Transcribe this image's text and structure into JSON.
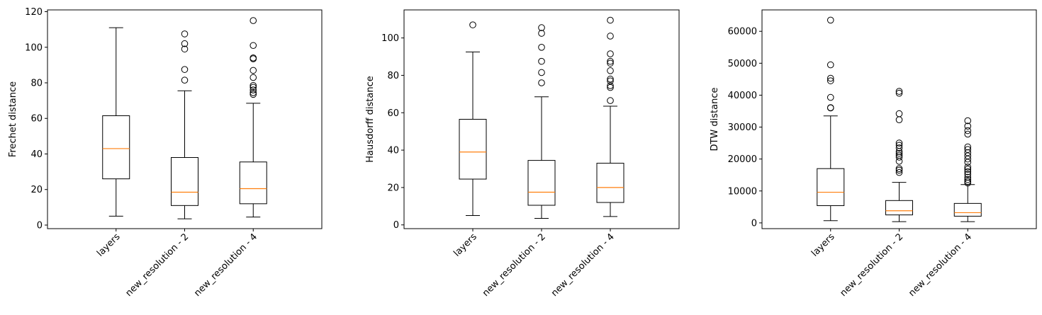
{
  "chart_data": [
    {
      "type": "box",
      "ylabel": "Frechet distance",
      "ylim": [
        -2,
        121
      ],
      "yticks": [
        0,
        20,
        40,
        60,
        80,
        100,
        120
      ],
      "categories": [
        "layers",
        "new_resolution - 2",
        "new_resolution - 4"
      ],
      "boxes": [
        {
          "whislo": 5,
          "q1": 26,
          "med": 43,
          "q3": 61.5,
          "whishi": 111,
          "fliers": []
        },
        {
          "whislo": 3.5,
          "q1": 11,
          "med": 18.5,
          "q3": 38,
          "whishi": 75.5,
          "fliers": [
            81.5,
            87.5,
            99,
            102,
            107.5
          ]
        },
        {
          "whislo": 4.5,
          "q1": 12,
          "med": 20.5,
          "q3": 35.5,
          "whishi": 68.5,
          "fliers": [
            73.5,
            74.5,
            76,
            77.5,
            78.5,
            83,
            87,
            93.5,
            94,
            101,
            115
          ]
        }
      ]
    },
    {
      "type": "box",
      "ylabel": "Hausdorff distance",
      "ylim": [
        -2,
        115
      ],
      "yticks": [
        0,
        20,
        40,
        60,
        80,
        100
      ],
      "categories": [
        "layers",
        "new_resolution - 2",
        "new_resolution - 4"
      ],
      "boxes": [
        {
          "whislo": 5,
          "q1": 24.5,
          "med": 39,
          "q3": 56.5,
          "whishi": 92.5,
          "fliers": [
            107
          ]
        },
        {
          "whislo": 3.5,
          "q1": 10.5,
          "med": 17.5,
          "q3": 34.5,
          "whishi": 68.5,
          "fliers": [
            76,
            81.5,
            87.5,
            95,
            102.5,
            105.5
          ]
        },
        {
          "whislo": 4.5,
          "q1": 12,
          "med": 20,
          "q3": 33,
          "whishi": 63.5,
          "fliers": [
            66.5,
            73.5,
            74.5,
            77,
            78,
            82.5,
            86.5,
            87.5,
            91.5,
            101,
            109.5
          ]
        }
      ]
    },
    {
      "type": "box",
      "ylabel": "DTW distance",
      "ylim": [
        -1800,
        66700
      ],
      "yticks": [
        0,
        10000,
        20000,
        30000,
        40000,
        50000,
        60000
      ],
      "categories": [
        "layers",
        "new_resolution - 2",
        "new_resolution - 4"
      ],
      "boxes": [
        {
          "whislo": 700,
          "q1": 5400,
          "med": 9600,
          "q3": 17000,
          "whishi": 33500,
          "fliers": [
            36000,
            36100,
            39300,
            44500,
            45300,
            49500,
            63500
          ]
        },
        {
          "whislo": 400,
          "q1": 2500,
          "med": 3800,
          "q3": 7000,
          "whishi": 12700,
          "fliers": [
            15800,
            16500,
            17000,
            19300,
            20600,
            21200,
            21800,
            22400,
            23500,
            24300,
            25000,
            32300,
            34200,
            40600,
            41200
          ]
        },
        {
          "whislo": 400,
          "q1": 2100,
          "med": 3200,
          "q3": 6100,
          "whishi": 12000,
          "fliers": [
            12500,
            13000,
            13600,
            14300,
            15200,
            16000,
            16800,
            17500,
            19000,
            20000,
            21000,
            22000,
            23000,
            23800,
            27800,
            28900,
            30300,
            32000
          ]
        }
      ]
    }
  ]
}
